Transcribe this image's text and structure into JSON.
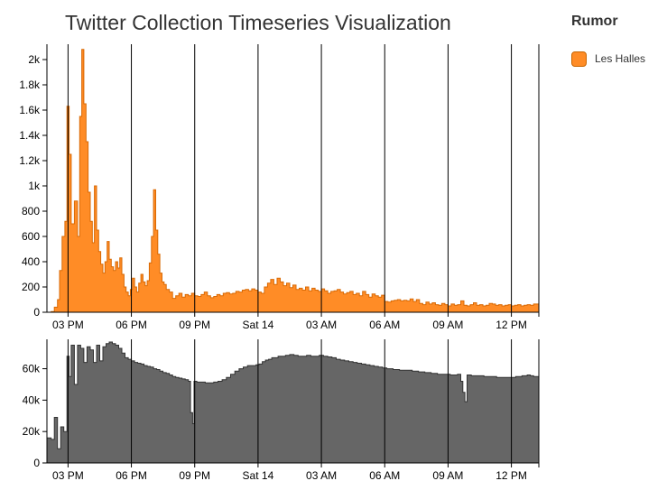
{
  "title": "Twitter Collection Timeseries Visualization",
  "legend": {
    "title": "Rumor",
    "items": [
      {
        "label": "Les Halles",
        "color": "#ff8c26"
      }
    ]
  },
  "chart_data": [
    {
      "type": "area",
      "step": true,
      "series": [
        {
          "name": "Les Halles",
          "color": "#ff8c26",
          "stroke": "#d96a05"
        }
      ],
      "x_unit": "hours",
      "x_ticks": [
        {
          "x": 15,
          "label": "03 PM"
        },
        {
          "x": 18,
          "label": "06 PM"
        },
        {
          "x": 21,
          "label": "09 PM"
        },
        {
          "x": 24,
          "label": "Sat 14"
        },
        {
          "x": 27,
          "label": "03 AM"
        },
        {
          "x": 30,
          "label": "06 AM"
        },
        {
          "x": 33,
          "label": "09 AM"
        },
        {
          "x": 36,
          "label": "12 PM"
        }
      ],
      "xlim": [
        14.0,
        37.3
      ],
      "ylim": [
        0,
        2100
      ],
      "y_ticks": [
        {
          "v": 0,
          "label": "0"
        },
        {
          "v": 200,
          "label": "200"
        },
        {
          "v": 400,
          "label": "400"
        },
        {
          "v": 600,
          "label": "600"
        },
        {
          "v": 800,
          "label": "800"
        },
        {
          "v": 1000,
          "label": "1k"
        },
        {
          "v": 1200,
          "label": "1.2k"
        },
        {
          "v": 1400,
          "label": "1.4k"
        },
        {
          "v": 1600,
          "label": "1.6k"
        },
        {
          "v": 1800,
          "label": "1.8k"
        },
        {
          "v": 2000,
          "label": "2k"
        }
      ],
      "points": [
        [
          14.0,
          0
        ],
        [
          14.2,
          5
        ],
        [
          14.35,
          40
        ],
        [
          14.5,
          100
        ],
        [
          14.6,
          330
        ],
        [
          14.72,
          600
        ],
        [
          14.85,
          720
        ],
        [
          14.95,
          1630
        ],
        [
          15.05,
          1250
        ],
        [
          15.15,
          700
        ],
        [
          15.3,
          880
        ],
        [
          15.45,
          600
        ],
        [
          15.55,
          1550
        ],
        [
          15.65,
          2080
        ],
        [
          15.75,
          1650
        ],
        [
          15.85,
          1350
        ],
        [
          15.95,
          950
        ],
        [
          16.05,
          720
        ],
        [
          16.15,
          550
        ],
        [
          16.25,
          1000
        ],
        [
          16.35,
          650
        ],
        [
          16.45,
          480
        ],
        [
          16.55,
          380
        ],
        [
          16.65,
          310
        ],
        [
          16.75,
          400
        ],
        [
          16.85,
          560
        ],
        [
          16.95,
          420
        ],
        [
          17.05,
          360
        ],
        [
          17.15,
          330
        ],
        [
          17.25,
          400
        ],
        [
          17.35,
          350
        ],
        [
          17.45,
          430
        ],
        [
          17.55,
          300
        ],
        [
          17.65,
          200
        ],
        [
          17.75,
          160
        ],
        [
          17.85,
          130
        ],
        [
          17.95,
          180
        ],
        [
          18.05,
          270
        ],
        [
          18.15,
          200
        ],
        [
          18.25,
          160
        ],
        [
          18.35,
          230
        ],
        [
          18.45,
          300
        ],
        [
          18.55,
          240
        ],
        [
          18.65,
          210
        ],
        [
          18.75,
          250
        ],
        [
          18.85,
          390
        ],
        [
          18.95,
          600
        ],
        [
          19.05,
          970
        ],
        [
          19.15,
          650
        ],
        [
          19.25,
          460
        ],
        [
          19.35,
          310
        ],
        [
          19.45,
          240
        ],
        [
          19.55,
          220
        ],
        [
          19.65,
          180
        ],
        [
          19.8,
          160
        ],
        [
          19.95,
          110
        ],
        [
          20.1,
          130
        ],
        [
          20.25,
          150
        ],
        [
          20.4,
          120
        ],
        [
          20.55,
          140
        ],
        [
          20.7,
          130
        ],
        [
          20.85,
          150
        ],
        [
          21.0,
          130
        ],
        [
          21.15,
          125
        ],
        [
          21.3,
          140
        ],
        [
          21.45,
          160
        ],
        [
          21.6,
          130
        ],
        [
          21.75,
          115
        ],
        [
          21.9,
          125
        ],
        [
          22.05,
          140
        ],
        [
          22.2,
          130
        ],
        [
          22.35,
          150
        ],
        [
          22.5,
          155
        ],
        [
          22.65,
          145
        ],
        [
          22.8,
          150
        ],
        [
          22.95,
          165
        ],
        [
          23.1,
          160
        ],
        [
          23.25,
          175
        ],
        [
          23.4,
          180
        ],
        [
          23.55,
          170
        ],
        [
          23.7,
          185
        ],
        [
          23.85,
          175
        ],
        [
          24.0,
          160
        ],
        [
          24.15,
          150
        ],
        [
          24.3,
          200
        ],
        [
          24.45,
          230
        ],
        [
          24.6,
          260
        ],
        [
          24.75,
          220
        ],
        [
          24.9,
          270
        ],
        [
          25.05,
          240
        ],
        [
          25.2,
          210
        ],
        [
          25.35,
          230
        ],
        [
          25.5,
          195
        ],
        [
          25.65,
          215
        ],
        [
          25.8,
          180
        ],
        [
          25.95,
          190
        ],
        [
          26.1,
          175
        ],
        [
          26.25,
          200
        ],
        [
          26.4,
          170
        ],
        [
          26.55,
          190
        ],
        [
          26.7,
          175
        ],
        [
          26.85,
          165
        ],
        [
          27.0,
          185
        ],
        [
          27.15,
          170
        ],
        [
          27.3,
          150
        ],
        [
          27.45,
          165
        ],
        [
          27.6,
          170
        ],
        [
          27.75,
          180
        ],
        [
          27.9,
          160
        ],
        [
          28.05,
          145
        ],
        [
          28.2,
          155
        ],
        [
          28.35,
          165
        ],
        [
          28.5,
          140
        ],
        [
          28.65,
          150
        ],
        [
          28.8,
          130
        ],
        [
          28.95,
          165
        ],
        [
          29.1,
          140
        ],
        [
          29.25,
          120
        ],
        [
          29.4,
          145
        ],
        [
          29.55,
          130
        ],
        [
          29.7,
          120
        ],
        [
          29.85,
          135
        ],
        [
          30.0,
          85
        ],
        [
          30.15,
          80
        ],
        [
          30.3,
          90
        ],
        [
          30.45,
          95
        ],
        [
          30.6,
          100
        ],
        [
          30.75,
          90
        ],
        [
          30.9,
          95
        ],
        [
          31.05,
          90
        ],
        [
          31.2,
          105
        ],
        [
          31.35,
          85
        ],
        [
          31.5,
          100
        ],
        [
          31.65,
          70
        ],
        [
          31.8,
          60
        ],
        [
          31.95,
          80
        ],
        [
          32.1,
          65
        ],
        [
          32.25,
          75
        ],
        [
          32.4,
          60
        ],
        [
          32.55,
          55
        ],
        [
          32.7,
          70
        ],
        [
          32.85,
          60
        ],
        [
          33.0,
          50
        ],
        [
          33.15,
          65
        ],
        [
          33.3,
          55
        ],
        [
          33.45,
          60
        ],
        [
          33.6,
          90
        ],
        [
          33.75,
          55
        ],
        [
          33.9,
          50
        ],
        [
          34.05,
          60
        ],
        [
          34.2,
          75
        ],
        [
          34.35,
          55
        ],
        [
          34.5,
          60
        ],
        [
          34.65,
          50
        ],
        [
          34.8,
          55
        ],
        [
          34.95,
          70
        ],
        [
          35.1,
          65
        ],
        [
          35.25,
          55
        ],
        [
          35.4,
          60
        ],
        [
          35.55,
          50
        ],
        [
          35.7,
          55
        ],
        [
          35.85,
          60
        ],
        [
          36.0,
          50
        ],
        [
          36.15,
          55
        ],
        [
          36.3,
          60
        ],
        [
          36.45,
          50
        ],
        [
          36.6,
          55
        ],
        [
          36.75,
          60
        ],
        [
          36.9,
          55
        ],
        [
          37.05,
          65
        ]
      ]
    },
    {
      "type": "area",
      "step": true,
      "series": [
        {
          "name": "",
          "color": "#666666",
          "stroke": "#333333"
        }
      ],
      "x_unit": "hours",
      "xlim": [
        14.0,
        37.3
      ],
      "ylim": [
        0,
        77000
      ],
      "y_ticks": [
        {
          "v": 0,
          "label": "0"
        },
        {
          "v": 20000,
          "label": "20k"
        },
        {
          "v": 40000,
          "label": "40k"
        },
        {
          "v": 60000,
          "label": "60k"
        }
      ],
      "x_ticks": [
        {
          "x": 15,
          "label": "03 PM"
        },
        {
          "x": 18,
          "label": "06 PM"
        },
        {
          "x": 21,
          "label": "09 PM"
        },
        {
          "x": 24,
          "label": "Sat 14"
        },
        {
          "x": 27,
          "label": "03 AM"
        },
        {
          "x": 30,
          "label": "06 AM"
        },
        {
          "x": 33,
          "label": "09 AM"
        },
        {
          "x": 36,
          "label": "12 PM"
        }
      ],
      "points": [
        [
          14.0,
          16000
        ],
        [
          14.2,
          15000
        ],
        [
          14.35,
          29000
        ],
        [
          14.5,
          9000
        ],
        [
          14.65,
          23000
        ],
        [
          14.8,
          20000
        ],
        [
          14.95,
          68000
        ],
        [
          15.05,
          55000
        ],
        [
          15.15,
          75000
        ],
        [
          15.3,
          50000
        ],
        [
          15.45,
          75000
        ],
        [
          15.6,
          73000
        ],
        [
          15.75,
          64000
        ],
        [
          15.9,
          74000
        ],
        [
          16.05,
          72000
        ],
        [
          16.2,
          64000
        ],
        [
          16.35,
          75000
        ],
        [
          16.5,
          65000
        ],
        [
          16.65,
          74000
        ],
        [
          16.8,
          76000
        ],
        [
          16.95,
          77000
        ],
        [
          17.1,
          76000
        ],
        [
          17.25,
          75000
        ],
        [
          17.4,
          73000
        ],
        [
          17.55,
          70000
        ],
        [
          17.7,
          67000
        ],
        [
          17.85,
          66000
        ],
        [
          18.0,
          65000
        ],
        [
          18.15,
          64000
        ],
        [
          18.3,
          63500
        ],
        [
          18.45,
          63000
        ],
        [
          18.6,
          62000
        ],
        [
          18.75,
          61500
        ],
        [
          18.9,
          61000
        ],
        [
          19.05,
          60000
        ],
        [
          19.2,
          59500
        ],
        [
          19.35,
          58500
        ],
        [
          19.5,
          57500
        ],
        [
          19.65,
          57000
        ],
        [
          19.8,
          56000
        ],
        [
          19.95,
          55000
        ],
        [
          20.1,
          54500
        ],
        [
          20.25,
          54000
        ],
        [
          20.4,
          53500
        ],
        [
          20.55,
          53000
        ],
        [
          20.7,
          52000
        ],
        [
          20.8,
          32000
        ],
        [
          20.9,
          25000
        ],
        [
          20.97,
          52000
        ],
        [
          21.1,
          51500
        ],
        [
          21.3,
          51500
        ],
        [
          21.5,
          51000
        ],
        [
          21.7,
          51000
        ],
        [
          21.9,
          51500
        ],
        [
          22.1,
          52000
        ],
        [
          22.3,
          53000
        ],
        [
          22.5,
          54500
        ],
        [
          22.7,
          56500
        ],
        [
          22.9,
          58500
        ],
        [
          23.1,
          60000
        ],
        [
          23.3,
          61000
        ],
        [
          23.5,
          62000
        ],
        [
          23.7,
          62000
        ],
        [
          23.9,
          62500
        ],
        [
          24.05,
          63000
        ],
        [
          24.2,
          64500
        ],
        [
          24.35,
          65500
        ],
        [
          24.5,
          66000
        ],
        [
          24.65,
          67000
        ],
        [
          24.8,
          67000
        ],
        [
          24.95,
          68000
        ],
        [
          25.1,
          68000
        ],
        [
          25.3,
          68500
        ],
        [
          25.5,
          69000
        ],
        [
          25.7,
          68500
        ],
        [
          25.9,
          68000
        ],
        [
          26.1,
          68000
        ],
        [
          26.3,
          68500
        ],
        [
          26.5,
          68000
        ],
        [
          26.7,
          68000
        ],
        [
          26.9,
          68500
        ],
        [
          27.1,
          68000
        ],
        [
          27.3,
          67500
        ],
        [
          27.5,
          67000
        ],
        [
          27.7,
          66000
        ],
        [
          27.9,
          65500
        ],
        [
          28.1,
          65000
        ],
        [
          28.3,
          64500
        ],
        [
          28.5,
          64000
        ],
        [
          28.7,
          63500
        ],
        [
          28.9,
          63000
        ],
        [
          29.1,
          62500
        ],
        [
          29.3,
          62000
        ],
        [
          29.5,
          61500
        ],
        [
          29.7,
          61000
        ],
        [
          29.9,
          60500
        ],
        [
          30.1,
          60000
        ],
        [
          30.4,
          59500
        ],
        [
          30.7,
          59000
        ],
        [
          31.0,
          59000
        ],
        [
          31.3,
          58500
        ],
        [
          31.6,
          58000
        ],
        [
          31.9,
          57500
        ],
        [
          32.2,
          57000
        ],
        [
          32.5,
          56500
        ],
        [
          32.8,
          56500
        ],
        [
          33.1,
          56000
        ],
        [
          33.3,
          56000
        ],
        [
          33.45,
          56500
        ],
        [
          33.6,
          52000
        ],
        [
          33.7,
          45000
        ],
        [
          33.8,
          39000
        ],
        [
          33.9,
          56000
        ],
        [
          34.1,
          55500
        ],
        [
          34.4,
          55500
        ],
        [
          34.7,
          55000
        ],
        [
          35.0,
          55000
        ],
        [
          35.3,
          54500
        ],
        [
          35.6,
          54500
        ],
        [
          35.9,
          54500
        ],
        [
          36.2,
          55000
        ],
        [
          36.5,
          55500
        ],
        [
          36.75,
          56000
        ],
        [
          36.9,
          55500
        ],
        [
          37.05,
          55000
        ]
      ]
    }
  ]
}
